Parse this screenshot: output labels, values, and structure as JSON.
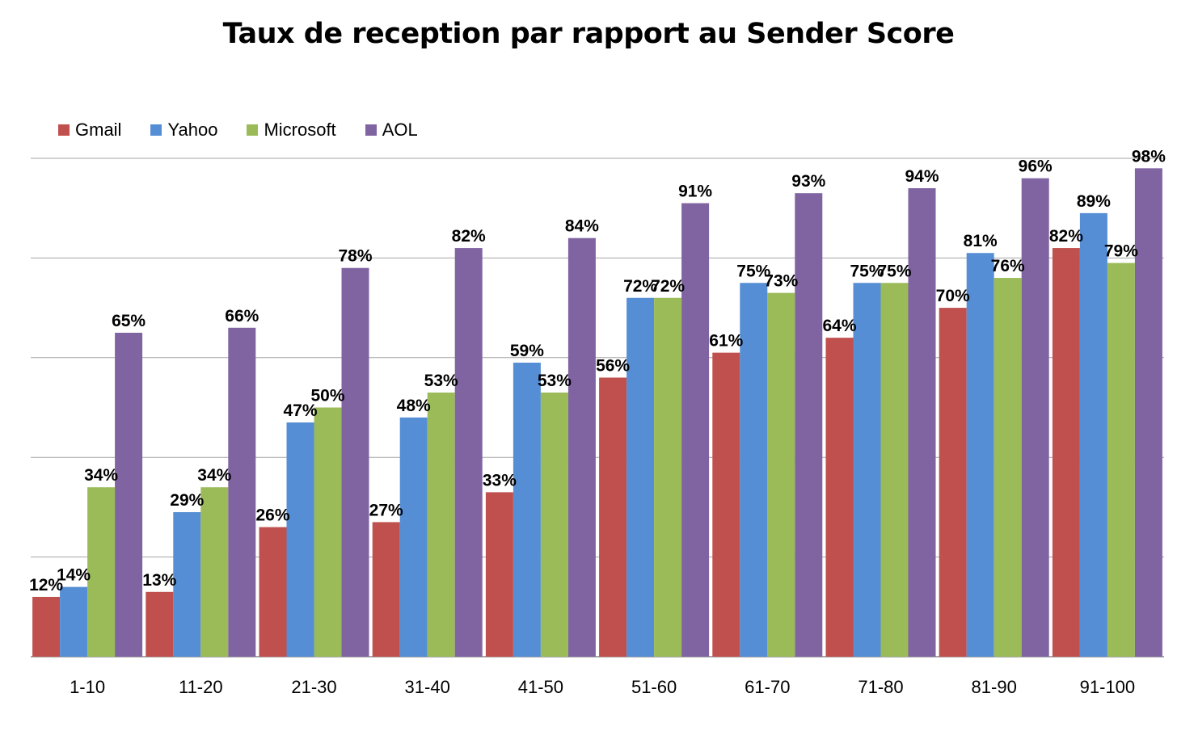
{
  "title": "Taux de reception par rapport au Sender Score",
  "chart_data": {
    "type": "bar",
    "title": "Taux de reception par rapport au Sender Score",
    "categories": [
      "1-10",
      "11-20",
      "21-30",
      "31-40",
      "41-50",
      "51-60",
      "61-70",
      "71-80",
      "81-90",
      "91-100"
    ],
    "series": [
      {
        "name": "Gmail",
        "color": "#C0504D",
        "values": [
          12,
          13,
          26,
          27,
          33,
          56,
          61,
          64,
          70,
          82
        ],
        "labels": [
          "12%",
          "13%",
          "26%",
          "27%",
          "33%",
          "56%",
          "61%",
          "64%",
          "70%",
          "82%"
        ]
      },
      {
        "name": "Yahoo",
        "color": "#558ED5",
        "values": [
          14,
          29,
          47,
          48,
          59,
          72,
          75,
          75,
          81,
          89
        ],
        "labels": [
          "14%",
          "29%",
          "47%",
          "48%",
          "59%",
          "72%",
          "75%",
          "75%",
          "81%",
          "89%"
        ]
      },
      {
        "name": "Microsoft",
        "color": "#9BBB59",
        "values": [
          34,
          34,
          50,
          53,
          53,
          72,
          73,
          75,
          76,
          79
        ],
        "labels": [
          "34%",
          "34%",
          "50%",
          "53%",
          "53%",
          "72%",
          "73%",
          "75%",
          "76%",
          "79%"
        ]
      },
      {
        "name": "AOL",
        "color": "#8064A2",
        "values": [
          65,
          66,
          78,
          82,
          84,
          91,
          93,
          94,
          96,
          98
        ],
        "labels": [
          "65%",
          "66%",
          "78%",
          "82%",
          "84%",
          "91%",
          "93%",
          "94%",
          "96%",
          "98%"
        ]
      }
    ],
    "ylim": [
      0,
      100
    ],
    "y_gridlines": [
      20,
      40,
      60,
      80,
      100
    ],
    "y_tick_labels_shown": false,
    "grid": true,
    "legend": "top-left"
  }
}
